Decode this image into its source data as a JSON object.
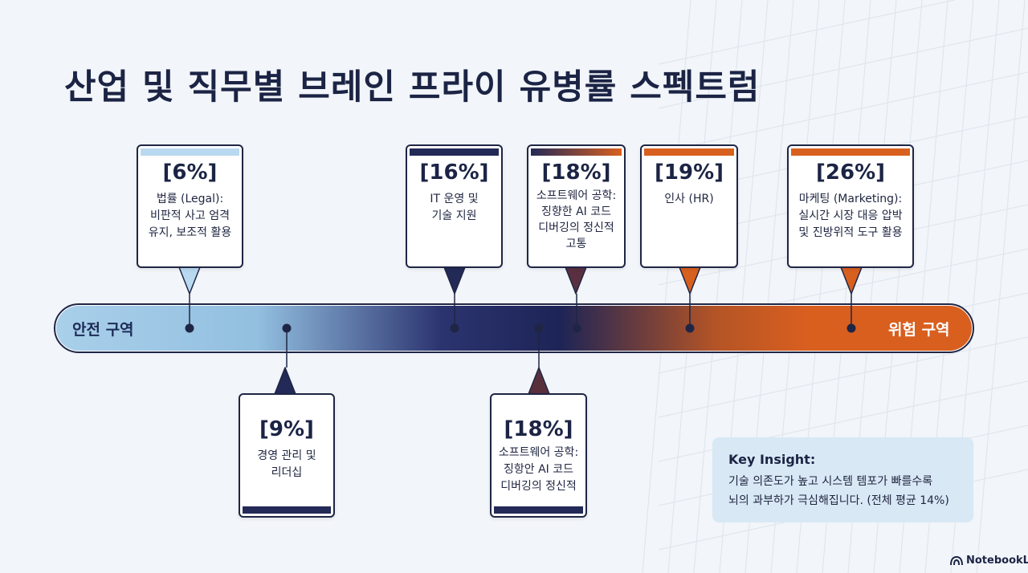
{
  "title": "산업 및 직무별 브레인 프라이 유병률 스펙트럼",
  "zones": {
    "safe": "안전 구역",
    "danger": "위험 구역"
  },
  "colors": {
    "safe": "#a9d0ea",
    "mid": "#1d2456",
    "danger": "#d95f1f",
    "navy": "#232a57",
    "orange": "#d8601f",
    "lightblue": "#b9d9f0"
  },
  "callouts": [
    {
      "id": "legal",
      "pct": "[6%]",
      "desc": "법률 (Legal):\n비판적 사고 엄격\n유지, 보조적 활용",
      "position": "above"
    },
    {
      "id": "management",
      "pct": "[9%]",
      "desc": "경영 관리 및\n리더십",
      "position": "below"
    },
    {
      "id": "it",
      "pct": "[16%]",
      "desc": "IT 운영 및\n기술 지원",
      "position": "above"
    },
    {
      "id": "software-below",
      "pct": "[18%]",
      "desc": "소프트웨어 공학:\n징항안 AI 코드\n디버깅의 정신적",
      "position": "below"
    },
    {
      "id": "software-above",
      "pct": "[18%]",
      "desc": "소프트웨어 공학:\n징향한 AI 코드\n디버깅의 정신적\n고통",
      "position": "above"
    },
    {
      "id": "hr",
      "pct": "[19%]",
      "desc": "인사 (HR)",
      "position": "above"
    },
    {
      "id": "marketing",
      "pct": "[26%]",
      "desc": "마케팅 (Marketing):\n실시간 시장 대응 압박\n및 진방위적 도구 활용",
      "position": "above"
    }
  ],
  "insight": {
    "title": "Key Insight:",
    "text": "기술 의존도가 높고 시스템 템포가 빠를수록\n뇌의 과부하가 극심해집니다. (전체 평균 14%)"
  },
  "brand": "NotebookLM"
}
